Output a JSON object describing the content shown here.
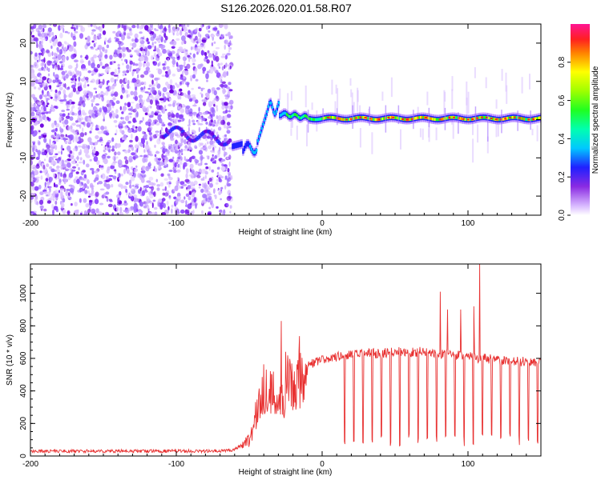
{
  "title": "S126.2026.020.01.58.R07",
  "chart_data": [
    {
      "type": "heatmap",
      "title": "",
      "xlabel": "Height of straight line (km)",
      "ylabel": "Frequency (Hz)",
      "xlim": [
        -200,
        150
      ],
      "ylim": [
        -25,
        25
      ],
      "x_ticks": [
        -200,
        -100,
        0,
        100
      ],
      "y_ticks": [
        -20,
        -10,
        0,
        10,
        20
      ],
      "colorbar": {
        "label": "Normalized spectral amplitude",
        "range": [
          0,
          1
        ],
        "ticks": [
          0.0,
          0.2,
          0.4,
          0.6,
          0.8
        ],
        "tick_labels": [
          "0.0",
          "0.2",
          "0.4",
          "0.6",
          "0.8"
        ]
      },
      "features": {
        "noise_region_x": [
          -200,
          -62
        ],
        "transition_x": [
          -62,
          -30
        ],
        "transition_freq_hz": [
          -7,
          5
        ],
        "carrier_x": [
          -30,
          150
        ],
        "carrier_freq_hz": 0
      }
    },
    {
      "type": "line",
      "title": "",
      "xlabel": "Height of straight line (km)",
      "ylabel": "SNR (10 * v/v)",
      "xlim": [
        -200,
        150
      ],
      "ylim": [
        0,
        1180
      ],
      "x_ticks": [
        -200,
        -100,
        0,
        100
      ],
      "y_ticks": [
        0,
        200,
        400,
        600,
        800,
        1000
      ],
      "series": [
        {
          "name": "SNR",
          "color": "#e83030",
          "x": [
            -200,
            -150,
            -100,
            -70,
            -60,
            -50,
            -45,
            -40,
            -35,
            -30,
            -25,
            -20,
            -10,
            0,
            10,
            20,
            30,
            40,
            50,
            60,
            70,
            80,
            90,
            100,
            110,
            120,
            130,
            140,
            150
          ],
          "y": [
            30,
            30,
            30,
            30,
            40,
            100,
            250,
            430,
            380,
            350,
            430,
            480,
            560,
            590,
            610,
            620,
            630,
            630,
            640,
            640,
            640,
            630,
            620,
            610,
            600,
            590,
            580,
            580,
            580
          ]
        }
      ]
    }
  ]
}
